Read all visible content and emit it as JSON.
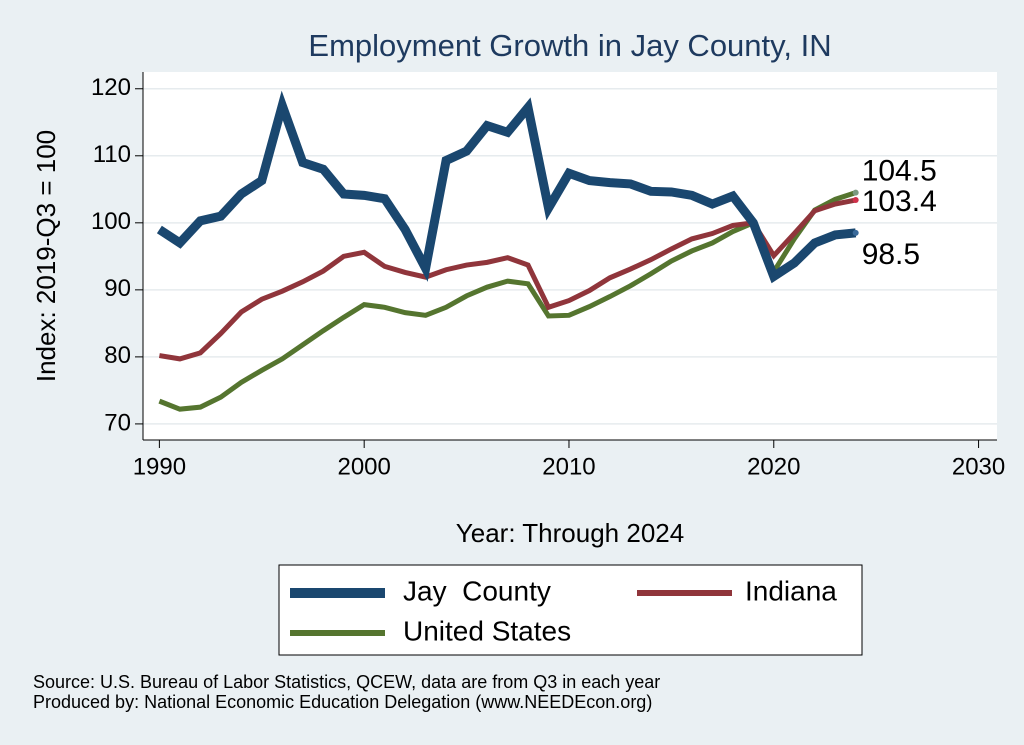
{
  "chart_data": {
    "type": "line",
    "title": "Employment Growth in Jay County, IN",
    "x_label": "Year: Through 2024",
    "y_label": "Index: 2019-Q3 = 100",
    "x": [
      1990,
      1991,
      1992,
      1993,
      1994,
      1995,
      1996,
      1997,
      1998,
      1999,
      2000,
      2001,
      2002,
      2003,
      2004,
      2005,
      2006,
      2007,
      2008,
      2009,
      2010,
      2011,
      2012,
      2013,
      2014,
      2015,
      2016,
      2017,
      2018,
      2019,
      2020,
      2021,
      2022,
      2023,
      2024
    ],
    "series": [
      {
        "name": "Jay  County",
        "color": "#1a476f",
        "values": [
          99,
          97,
          100.3,
          101,
          104.3,
          106.3,
          117.5,
          109,
          108,
          104.3,
          104.1,
          103.6,
          99,
          93.2,
          109.3,
          110.7,
          114.5,
          113.5,
          117.2,
          102.2,
          107.4,
          106.3,
          106,
          105.8,
          104.7,
          104.6,
          104.1,
          102.8,
          104,
          100,
          92,
          94,
          97,
          98.2,
          98.5
        ]
      },
      {
        "name": "Indiana",
        "color": "#90353b",
        "values": [
          80.2,
          79.7,
          80.6,
          83.5,
          86.7,
          88.6,
          89.8,
          91.2,
          92.8,
          95,
          95.6,
          93.5,
          92.6,
          91.9,
          93,
          93.7,
          94.1,
          94.8,
          93.7,
          87.4,
          88.4,
          89.9,
          91.8,
          93.1,
          94.5,
          96.1,
          97.6,
          98.4,
          99.6,
          100,
          95.1,
          98.4,
          101.8,
          102.8,
          103.4
        ]
      },
      {
        "name": "United States",
        "color": "#55752f",
        "values": [
          73.4,
          72.2,
          72.5,
          74,
          76.2,
          78,
          79.7,
          81.8,
          83.9,
          85.9,
          87.8,
          87.4,
          86.6,
          86.2,
          87.4,
          89.1,
          90.4,
          91.3,
          90.9,
          86.1,
          86.2,
          87.5,
          89,
          90.6,
          92.4,
          94.3,
          95.8,
          97,
          98.7,
          100,
          92.7,
          97.6,
          101.9,
          103.5,
          104.5
        ]
      }
    ],
    "xlim": [
      1989.2,
      2030.9
    ],
    "xticks": [
      1990,
      2000,
      2010,
      2020,
      2030
    ],
    "ylim": [
      67.6,
      122.5
    ],
    "yticks": [
      70,
      80,
      90,
      100,
      110,
      120
    ],
    "grid": true,
    "notes": [
      "Source: U.S. Bureau of Labor Statistics, QCEW, data are from Q3 in each year",
      "Produced by: National Economic Education Delegation (www.NEEDEcon.org)"
    ]
  }
}
